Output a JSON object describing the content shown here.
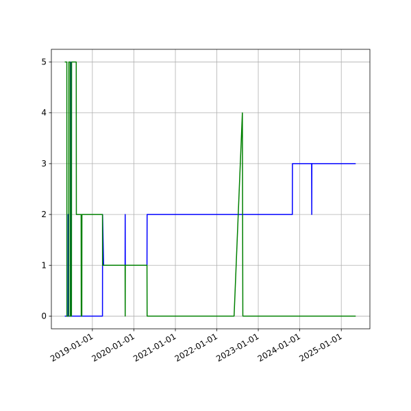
{
  "chart_data": {
    "type": "line",
    "xlim": [
      "2018-01-05",
      "2025-09-10"
    ],
    "ylim": [
      -0.25,
      5.25
    ],
    "xticks": [
      "2019-01-01",
      "2020-01-01",
      "2021-01-01",
      "2022-01-01",
      "2023-01-01",
      "2024-01-01",
      "2025-01-01"
    ],
    "yticks": [
      0,
      1,
      2,
      3,
      4,
      5
    ],
    "grid": true,
    "series": [
      {
        "color": "#0000ff",
        "x": [
          "2018-05-03",
          "2018-06-01",
          "2018-06-02",
          "2018-06-03",
          "2018-06-25",
          "2018-06-26",
          "2018-06-27",
          "2019-03-31",
          "2019-04-01",
          "2019-04-10",
          "2019-10-16",
          "2019-10-17",
          "2019-10-18",
          "2020-04-26",
          "2020-04-27",
          "2023-10-28",
          "2023-10-29",
          "2024-04-15",
          "2024-04-16",
          "2024-04-17",
          "2025-05-08"
        ],
        "values": [
          0,
          0,
          2,
          0,
          0,
          5,
          0,
          0,
          2,
          1,
          1,
          2,
          1,
          1,
          2,
          2,
          3,
          3,
          2,
          3,
          3
        ]
      },
      {
        "color": "#008000",
        "x": [
          "2018-05-03",
          "2018-05-21",
          "2018-05-22",
          "2018-06-07",
          "2018-06-08",
          "2018-06-20",
          "2018-06-21",
          "2018-07-01",
          "2018-07-02",
          "2018-08-12",
          "2018-08-13",
          "2018-09-24",
          "2018-09-25",
          "2018-09-30",
          "2018-10-01",
          "2019-03-31",
          "2019-04-01",
          "2019-10-16",
          "2019-10-17",
          "2019-10-18",
          "2020-04-26",
          "2020-04-27",
          "2022-06-02",
          "2022-08-14",
          "2022-08-18",
          "2025-05-08"
        ],
        "values": [
          5,
          5,
          0,
          0,
          5,
          5,
          0,
          0,
          5,
          5,
          2,
          2,
          0,
          0,
          2,
          2,
          1,
          1,
          0,
          1,
          1,
          0,
          0,
          4,
          0,
          0
        ]
      }
    ]
  }
}
